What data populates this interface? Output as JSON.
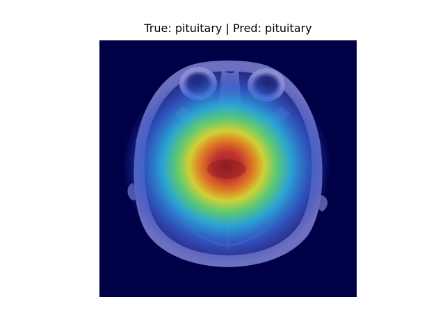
{
  "figure": {
    "title": "True: pituitary | Pred: pituitary"
  },
  "image": {
    "subject": "axial brain MRI slice with Grad-CAM heatmap overlay",
    "colors": {
      "background": "#000046",
      "tissue": "#5c5fb3",
      "heat_peak": "#a8292a"
    }
  }
}
